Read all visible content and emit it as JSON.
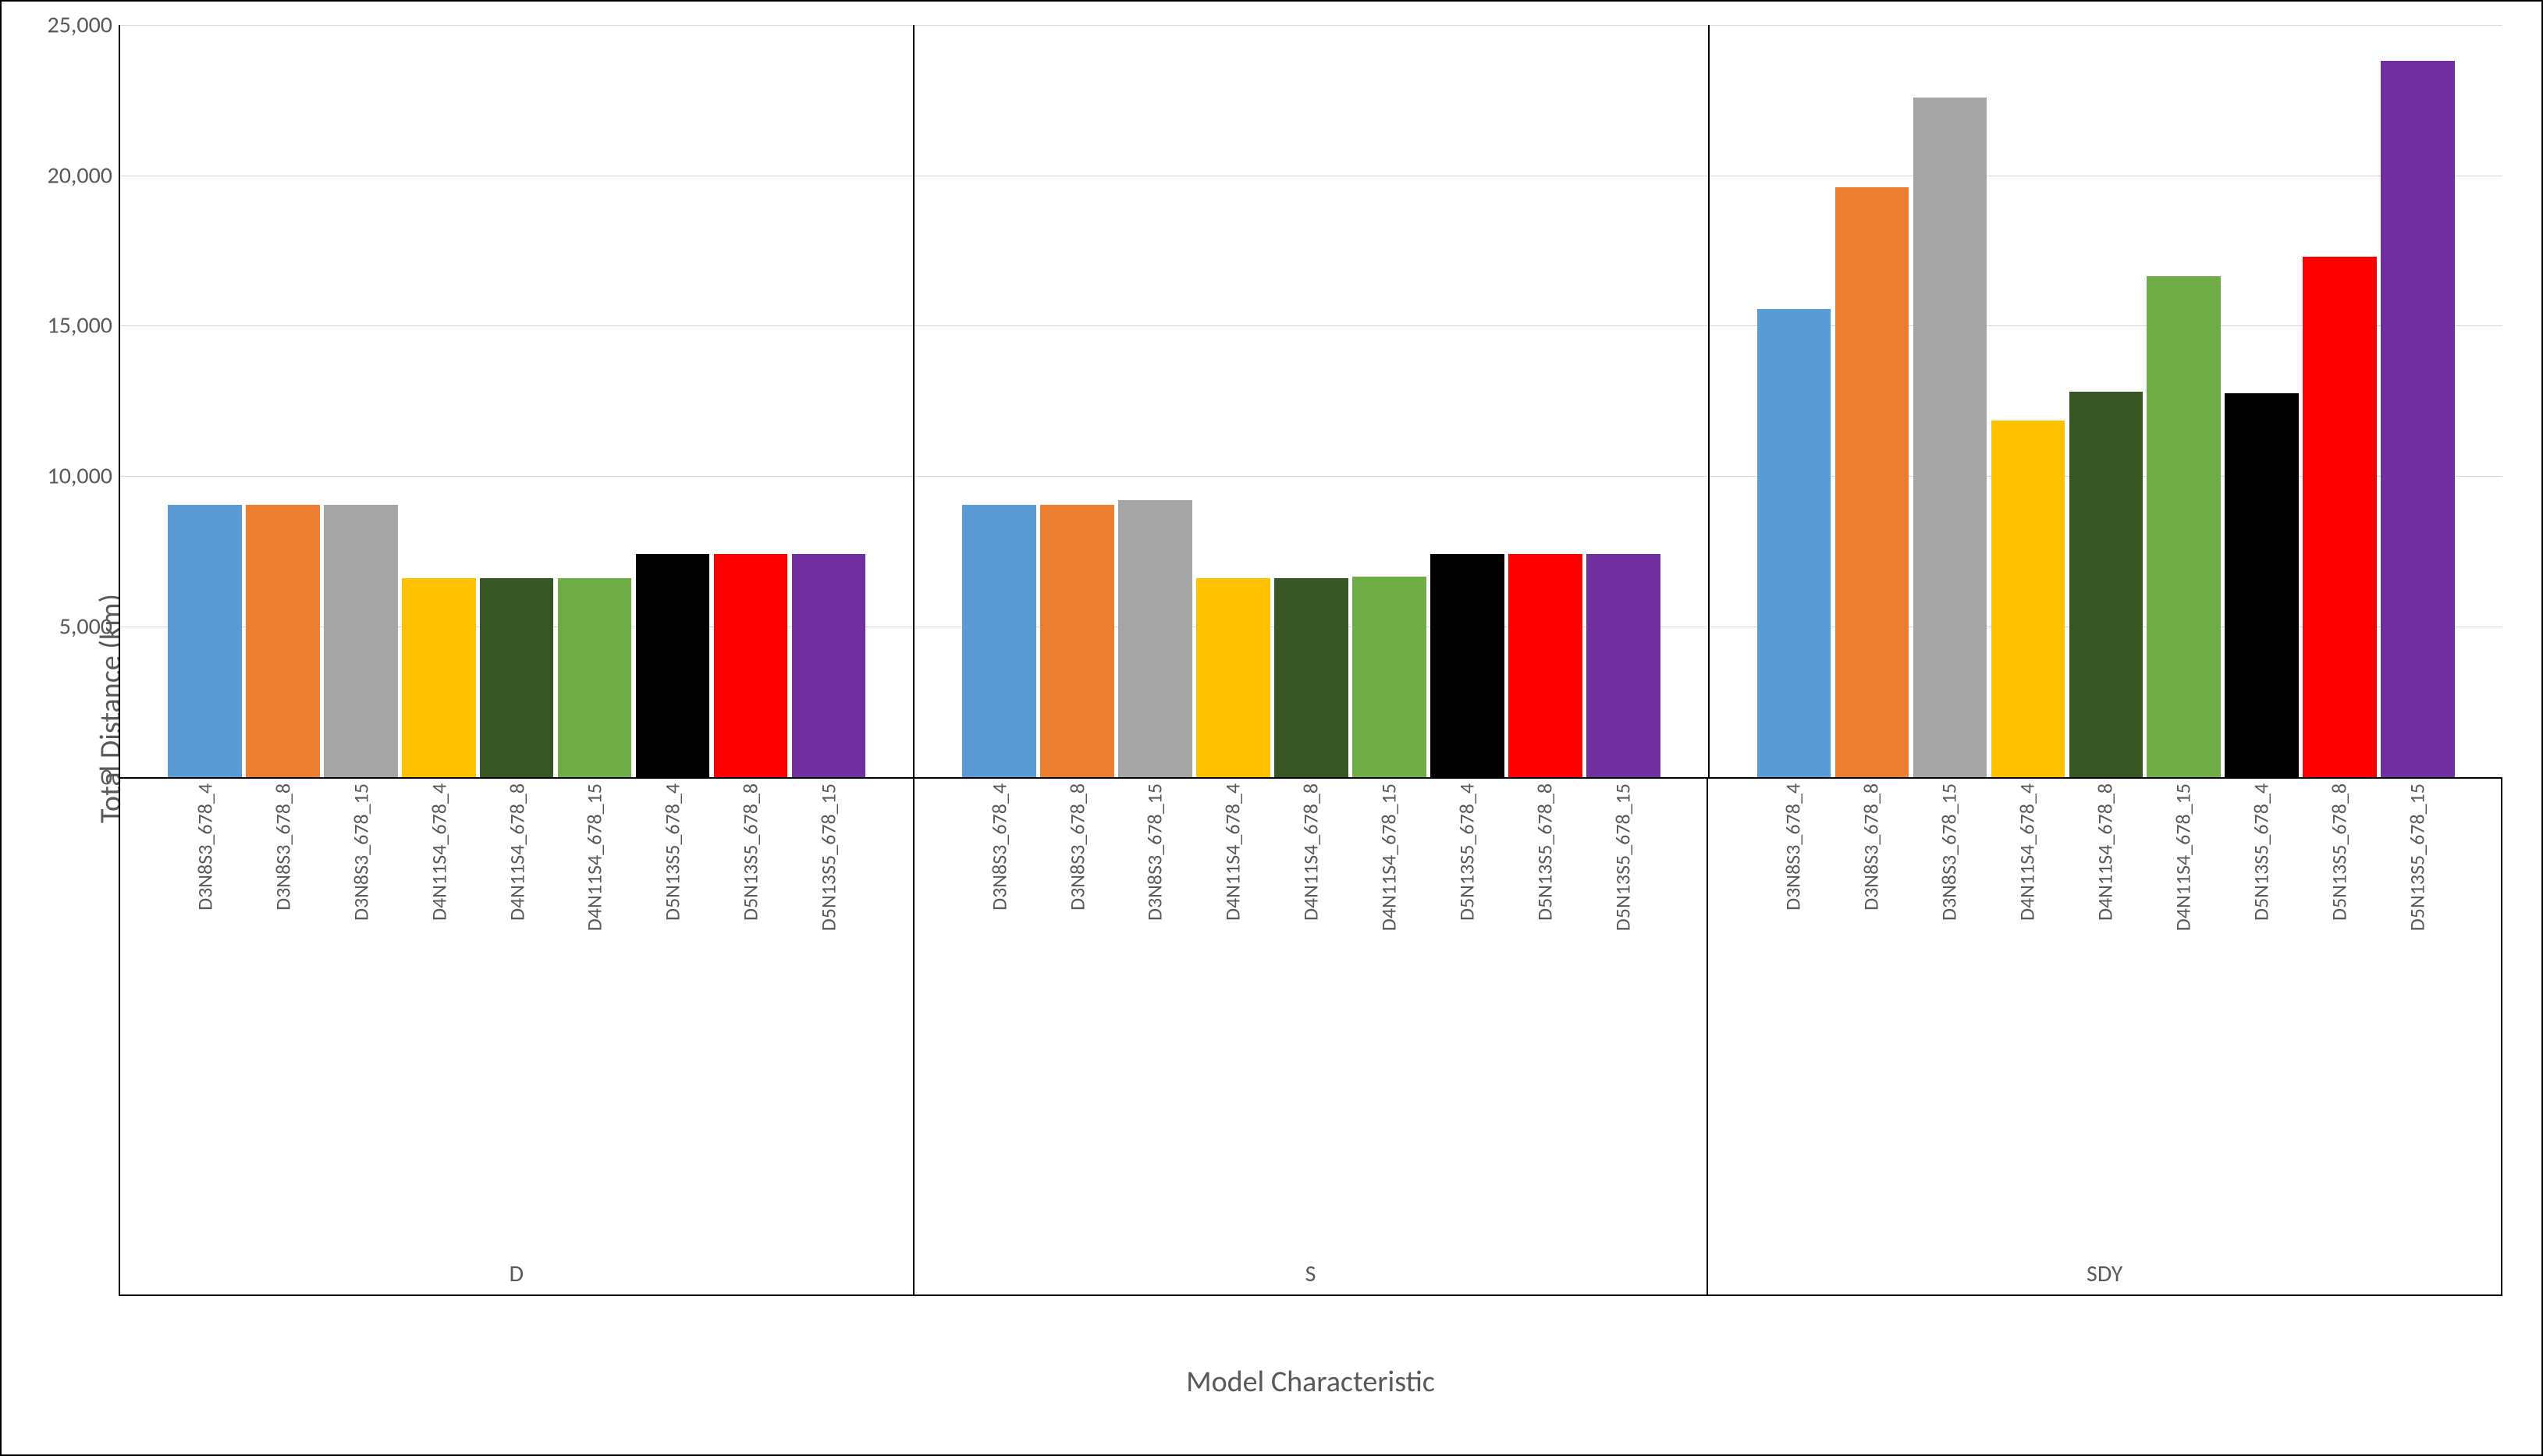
{
  "chart": {
    "type": "bar",
    "y_axis_title": "Total Distance (km)",
    "x_axis_title": "Model Characteristic",
    "title_fontsize": 38,
    "tick_fontsize": 30,
    "cat_label_fontsize": 26,
    "background_color": "#ffffff",
    "grid_color": "#d9d9d9",
    "axis_color": "#000000",
    "text_color": "#595959",
    "ylim": [
      0,
      25000
    ],
    "yticks": [
      {
        "v": 0,
        "label": "0"
      },
      {
        "v": 5000,
        "label": "5,000"
      },
      {
        "v": 10000,
        "label": "10,000"
      },
      {
        "v": 15000,
        "label": "15,000"
      },
      {
        "v": 20000,
        "label": "20,000"
      },
      {
        "v": 25000,
        "label": "25,000"
      }
    ],
    "series_colors": [
      "#5b9bd5",
      "#ed7d31",
      "#a5a5a5",
      "#ffc000",
      "#375623",
      "#70ad47",
      "#000000",
      "#ff0000",
      "#7030a0"
    ],
    "categories": [
      "D3N8S3_678_4",
      "D3N8S3_678_8",
      "D3N8S3_678_15",
      "D4N11S4_678_4",
      "D4N11S4_678_8",
      "D4N11S4_678_15",
      "D5N13S5_678_4",
      "D5N13S5_678_8",
      "D5N13S5_678_15"
    ],
    "groups": [
      {
        "label": "D",
        "values": [
          9050,
          9050,
          9050,
          6600,
          6600,
          6600,
          7400,
          7400,
          7400
        ]
      },
      {
        "label": "S",
        "values": [
          9050,
          9050,
          9200,
          6600,
          6600,
          6650,
          7400,
          7400,
          7400
        ]
      },
      {
        "label": "SDY",
        "values": [
          15550,
          19600,
          22600,
          11850,
          12800,
          16650,
          12750,
          17300,
          23800
        ]
      }
    ]
  }
}
